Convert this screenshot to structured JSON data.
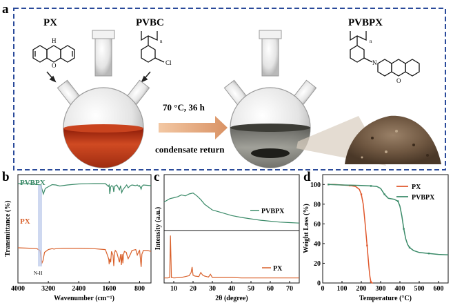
{
  "panel_a": {
    "label": "a",
    "reagents": {
      "left": "PX",
      "right": "PVBC",
      "product": "PVBPX"
    },
    "chem": {
      "nh": "H",
      "o": "O",
      "n": "N",
      "cl": "Cl",
      "sub_n": "n"
    },
    "conditions": {
      "temp_time": "70 °C, 36 h",
      "process": "condensate return"
    }
  },
  "chart_data": [
    {
      "panel": "b",
      "type": "line",
      "xlabel": "Wavenumber (cm⁻¹)",
      "ylabel": "Transmittance (%)",
      "xlim": [
        4000,
        500
      ],
      "x_ticks": [
        4000,
        3200,
        2400,
        1600,
        800
      ],
      "annotation": "N-H",
      "series": [
        {
          "name": "PVBPX",
          "color": "#3a8a68",
          "x": [
            4000,
            3600,
            3400,
            3330,
            3280,
            3100,
            3000,
            2900,
            2700,
            2400,
            2000,
            1700,
            1620,
            1600,
            1585,
            1560,
            1540,
            1500,
            1480,
            1460,
            1400,
            1330,
            1300,
            1270,
            1240,
            1210,
            1140,
            1100,
            1040,
            1000,
            900,
            860,
            820,
            800,
            760,
            740,
            700,
            600,
            500
          ],
          "y": [
            0.92,
            0.91,
            0.88,
            0.62,
            0.78,
            0.89,
            0.88,
            0.85,
            0.88,
            0.91,
            0.92,
            0.92,
            0.84,
            0.88,
            0.62,
            0.82,
            0.86,
            0.84,
            0.68,
            0.84,
            0.88,
            0.74,
            0.86,
            0.66,
            0.74,
            0.78,
            0.88,
            0.8,
            0.86,
            0.88,
            0.86,
            0.88,
            0.84,
            0.86,
            0.76,
            0.84,
            0.88,
            0.87,
            0.86
          ]
        },
        {
          "name": "PX",
          "color": "#d9602a",
          "x": [
            4000,
            3700,
            3500,
            3420,
            3370,
            3340,
            3300,
            3200,
            3100,
            3050,
            3000,
            2800,
            2400,
            2000,
            1700,
            1630,
            1610,
            1600,
            1580,
            1560,
            1540,
            1500,
            1480,
            1460,
            1440,
            1400,
            1330,
            1300,
            1280,
            1260,
            1240,
            1220,
            1200,
            1150,
            1120,
            1100,
            1040,
            1000,
            900,
            860,
            820,
            800,
            760,
            740,
            700,
            600,
            500
          ],
          "y": [
            0.44,
            0.43,
            0.42,
            0.38,
            0.1,
            0.16,
            0.34,
            0.4,
            0.42,
            0.41,
            0.42,
            0.43,
            0.43,
            0.42,
            0.4,
            0.24,
            0.18,
            0.08,
            0.2,
            0.12,
            0.36,
            0.28,
            0.04,
            0.32,
            0.38,
            0.34,
            0.12,
            0.3,
            0.06,
            0.3,
            0.1,
            0.3,
            0.36,
            0.34,
            0.24,
            0.2,
            0.3,
            0.38,
            0.4,
            0.28,
            0.36,
            0.38,
            0.02,
            0.3,
            0.38,
            0.38,
            0.36
          ]
        }
      ]
    },
    {
      "panel": "c",
      "type": "line",
      "xlabel": "2θ (degree)",
      "ylabel": "Intensity (a.u.)",
      "xlim": [
        5,
        75
      ],
      "x_ticks": [
        10,
        20,
        30,
        40,
        50,
        60,
        70
      ],
      "series": [
        {
          "name": "PVBPX",
          "color": "#3a8a68",
          "x": [
            5,
            8,
            10,
            12,
            14,
            16,
            18,
            20,
            22,
            24,
            26,
            28,
            30,
            35,
            40,
            45,
            50,
            55,
            60,
            65,
            70,
            75
          ],
          "y": [
            0.55,
            0.62,
            0.64,
            0.66,
            0.7,
            0.68,
            0.72,
            0.74,
            0.68,
            0.6,
            0.5,
            0.44,
            0.38,
            0.32,
            0.26,
            0.22,
            0.19,
            0.16,
            0.14,
            0.12,
            0.11,
            0.1
          ]
        },
        {
          "name": "PX",
          "color": "#d9602a",
          "x": [
            5,
            7,
            7.9,
            8.3,
            8.8,
            10,
            14,
            16,
            18,
            19,
            19.5,
            20,
            21,
            23,
            24,
            25,
            26,
            27,
            28,
            29,
            30,
            35,
            40,
            45,
            50,
            55,
            60,
            65,
            70,
            75
          ],
          "y": [
            0.02,
            0.02,
            0.03,
            0.95,
            0.03,
            0.02,
            0.03,
            0.05,
            0.07,
            0.14,
            0.26,
            0.08,
            0.06,
            0.05,
            0.14,
            0.08,
            0.06,
            0.05,
            0.04,
            0.1,
            0.03,
            0.03,
            0.03,
            0.02,
            0.02,
            0.02,
            0.02,
            0.02,
            0.02,
            0.02
          ]
        }
      ]
    },
    {
      "panel": "d",
      "type": "line",
      "xlabel": "Temperature (°C)",
      "ylabel": "Weight Loss (%)",
      "xlim": [
        0,
        650
      ],
      "ylim": [
        0,
        110
      ],
      "x_ticks": [
        0,
        100,
        200,
        300,
        400,
        500,
        600
      ],
      "y_ticks": [
        0,
        20,
        40,
        60,
        80,
        100
      ],
      "series": [
        {
          "name": "PX",
          "color": "#e0572b",
          "x": [
            30,
            60,
            100,
            140,
            170,
            190,
            200,
            210,
            220,
            230,
            240,
            245,
            250,
            255,
            260
          ],
          "y": [
            100,
            100,
            99.5,
            99,
            98,
            95,
            90,
            80,
            60,
            38,
            15,
            6,
            1,
            0,
            0
          ]
        },
        {
          "name": "PVBPX",
          "color": "#3a8a68",
          "x": [
            30,
            100,
            200,
            250,
            280,
            300,
            320,
            340,
            370,
            390,
            400,
            410,
            420,
            430,
            440,
            450,
            470,
            500,
            550,
            600,
            650
          ],
          "y": [
            100,
            99.5,
            99,
            98.5,
            98,
            96,
            90,
            86,
            85,
            83,
            78,
            68,
            55,
            45,
            39,
            36,
            33,
            31,
            30,
            29,
            28.5
          ]
        }
      ]
    }
  ],
  "panel_labels": {
    "b": "b",
    "c": "c",
    "d": "d"
  }
}
